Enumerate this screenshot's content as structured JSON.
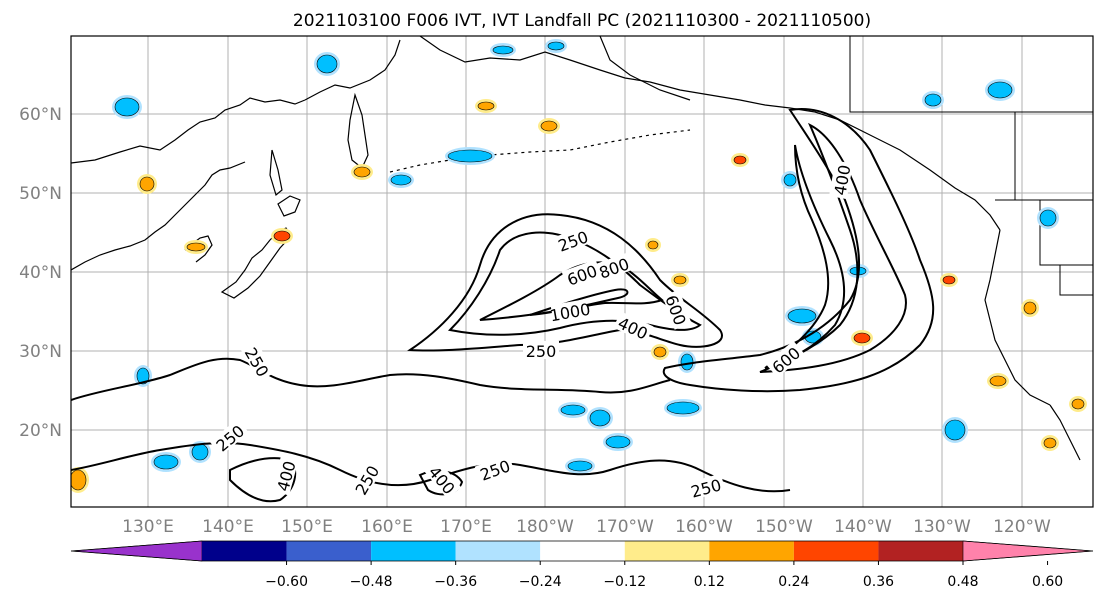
{
  "title": "2021103100 F006 IVT, IVT Landfall PC (2021110300 - 2021110500)",
  "lat_labels": [
    "60°N",
    "50°N",
    "40°N",
    "30°N",
    "20°N"
  ],
  "lon_labels": [
    "130°E",
    "140°E",
    "150°E",
    "160°E",
    "170°E",
    "180°W",
    "170°W",
    "160°W",
    "150°W",
    "140°W",
    "130°W",
    "120°W"
  ],
  "colorbar": {
    "colors": [
      "#9932CC",
      "#00008B",
      "#3A5FCD",
      "#00BFFF",
      "#B0E2FF",
      "#FFFFFF",
      "#FFEC8B",
      "#FFA500",
      "#FF4500",
      "#B22222",
      "#FF82AB"
    ],
    "tick_labels": [
      "−0.60",
      "−0.48",
      "−0.36",
      "−0.24",
      "−0.12",
      "0.12",
      "0.24",
      "0.36",
      "0.48",
      "0.60"
    ]
  },
  "contour_labels": [
    "250",
    "600",
    "800",
    "1000",
    "400",
    "600",
    "250",
    "400",
    "600",
    "250",
    "250",
    "400",
    "250",
    "400",
    "250",
    "250"
  ]
}
